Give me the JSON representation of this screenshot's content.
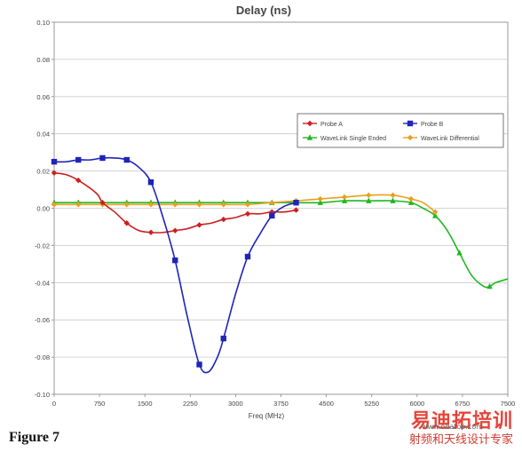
{
  "chart_data": {
    "type": "line",
    "title": "Delay (ns)",
    "xlabel": "Freq (MHz)",
    "ylabel": "",
    "xlim": [
      0,
      7500
    ],
    "ylim": [
      -0.1,
      0.1
    ],
    "x_ticks": [
      "0",
      "750",
      "1500",
      "2250",
      "3000",
      "3750",
      "4500",
      "5250",
      "6000",
      "6750",
      "7500"
    ],
    "y_ticks": [
      "0.10",
      "0.08",
      "0.06",
      "0.04",
      "0.02",
      "0.00",
      "-0.02",
      "-0.04",
      "-0.06",
      "-0.08",
      "-0.10"
    ],
    "grid": "horizontal",
    "legend_position": "top-right",
    "series": [
      {
        "name": "Probe A",
        "color": "#cc1f1f",
        "marker": "diamond",
        "points": [
          [
            0,
            0.019
          ],
          [
            200,
            0.018
          ],
          [
            400,
            0.015
          ],
          [
            700,
            0.008
          ],
          [
            800,
            0.003
          ],
          [
            1000,
            -0.002
          ],
          [
            1200,
            -0.008
          ],
          [
            1400,
            -0.012
          ],
          [
            1600,
            -0.013
          ],
          [
            1800,
            -0.013
          ],
          [
            2000,
            -0.012
          ],
          [
            2200,
            -0.011
          ],
          [
            2400,
            -0.009
          ],
          [
            2600,
            -0.008
          ],
          [
            2800,
            -0.006
          ],
          [
            3000,
            -0.005
          ],
          [
            3200,
            -0.003
          ],
          [
            3400,
            -0.003
          ],
          [
            3600,
            -0.002
          ],
          [
            3800,
            -0.002
          ],
          [
            4000,
            -0.001
          ]
        ],
        "marker_points": [
          [
            0,
            0.019
          ],
          [
            400,
            0.015
          ],
          [
            800,
            0.003
          ],
          [
            1200,
            -0.008
          ],
          [
            1600,
            -0.013
          ],
          [
            2000,
            -0.012
          ],
          [
            2400,
            -0.009
          ],
          [
            2800,
            -0.006
          ],
          [
            3200,
            -0.003
          ],
          [
            3600,
            -0.002
          ],
          [
            4000,
            -0.001
          ]
        ]
      },
      {
        "name": "Probe B",
        "color": "#1f24b8",
        "marker": "square",
        "points": [
          [
            0,
            0.025
          ],
          [
            200,
            0.025
          ],
          [
            400,
            0.026
          ],
          [
            600,
            0.026
          ],
          [
            800,
            0.027
          ],
          [
            1000,
            0.027
          ],
          [
            1200,
            0.026
          ],
          [
            1400,
            0.022
          ],
          [
            1600,
            0.014
          ],
          [
            1800,
            -0.005
          ],
          [
            2000,
            -0.028
          ],
          [
            2200,
            -0.058
          ],
          [
            2400,
            -0.084
          ],
          [
            2550,
            -0.088
          ],
          [
            2700,
            -0.08
          ],
          [
            2800,
            -0.07
          ],
          [
            3000,
            -0.046
          ],
          [
            3200,
            -0.026
          ],
          [
            3400,
            -0.014
          ],
          [
            3600,
            -0.004
          ],
          [
            3800,
            0.001
          ],
          [
            4000,
            0.003
          ]
        ],
        "marker_points": [
          [
            0,
            0.025
          ],
          [
            400,
            0.026
          ],
          [
            800,
            0.027
          ],
          [
            1200,
            0.026
          ],
          [
            1600,
            0.014
          ],
          [
            2000,
            -0.028
          ],
          [
            2400,
            -0.084
          ],
          [
            2800,
            -0.07
          ],
          [
            3200,
            -0.026
          ],
          [
            3600,
            -0.004
          ],
          [
            4000,
            0.003
          ]
        ]
      },
      {
        "name": "WaveLink Single Ended",
        "color": "#1fb81f",
        "marker": "triangle",
        "points": [
          [
            0,
            0.003
          ],
          [
            400,
            0.003
          ],
          [
            800,
            0.003
          ],
          [
            1200,
            0.003
          ],
          [
            1600,
            0.003
          ],
          [
            2000,
            0.003
          ],
          [
            2400,
            0.003
          ],
          [
            2800,
            0.003
          ],
          [
            3200,
            0.003
          ],
          [
            3600,
            0.003
          ],
          [
            4000,
            0.003
          ],
          [
            4400,
            0.003
          ],
          [
            4800,
            0.004
          ],
          [
            5200,
            0.004
          ],
          [
            5600,
            0.004
          ],
          [
            5900,
            0.003
          ],
          [
            6100,
            0.0
          ],
          [
            6300,
            -0.004
          ],
          [
            6500,
            -0.012
          ],
          [
            6700,
            -0.024
          ],
          [
            6900,
            -0.036
          ],
          [
            7100,
            -0.042
          ],
          [
            7200,
            -0.042
          ],
          [
            7300,
            -0.04
          ],
          [
            7500,
            -0.038
          ]
        ],
        "marker_points": [
          [
            0,
            0.003
          ],
          [
            400,
            0.003
          ],
          [
            800,
            0.003
          ],
          [
            1200,
            0.003
          ],
          [
            1600,
            0.003
          ],
          [
            2000,
            0.003
          ],
          [
            2400,
            0.003
          ],
          [
            2800,
            0.003
          ],
          [
            3200,
            0.003
          ],
          [
            3600,
            0.003
          ],
          [
            4000,
            0.003
          ],
          [
            4400,
            0.003
          ],
          [
            4800,
            0.004
          ],
          [
            5200,
            0.004
          ],
          [
            5600,
            0.004
          ],
          [
            5900,
            0.003
          ],
          [
            6300,
            -0.004
          ],
          [
            6700,
            -0.024
          ],
          [
            7200,
            -0.042
          ]
        ]
      },
      {
        "name": "WaveLink Differential",
        "color": "#e8a020",
        "marker": "diamond",
        "points": [
          [
            0,
            0.002
          ],
          [
            400,
            0.002
          ],
          [
            800,
            0.002
          ],
          [
            1200,
            0.002
          ],
          [
            1600,
            0.002
          ],
          [
            2000,
            0.002
          ],
          [
            2400,
            0.002
          ],
          [
            2800,
            0.002
          ],
          [
            3200,
            0.002
          ],
          [
            3600,
            0.003
          ],
          [
            4000,
            0.004
          ],
          [
            4400,
            0.005
          ],
          [
            4800,
            0.006
          ],
          [
            5200,
            0.007
          ],
          [
            5600,
            0.007
          ],
          [
            5900,
            0.005
          ],
          [
            6100,
            0.003
          ],
          [
            6300,
            -0.002
          ]
        ],
        "marker_points": [
          [
            0,
            0.002
          ],
          [
            400,
            0.002
          ],
          [
            800,
            0.002
          ],
          [
            1200,
            0.002
          ],
          [
            1600,
            0.002
          ],
          [
            2000,
            0.002
          ],
          [
            2400,
            0.002
          ],
          [
            2800,
            0.002
          ],
          [
            3200,
            0.002
          ],
          [
            3600,
            0.003
          ],
          [
            4000,
            0.004
          ],
          [
            4400,
            0.005
          ],
          [
            4800,
            0.006
          ],
          [
            5200,
            0.007
          ],
          [
            5600,
            0.007
          ],
          [
            5900,
            0.005
          ],
          [
            6300,
            -0.002
          ]
        ]
      }
    ]
  },
  "caption": "Figure 7",
  "watermark": {
    "main": "易迪拓培训",
    "sub": "射频和天线设计专家",
    "url": "www.edatop.com"
  }
}
